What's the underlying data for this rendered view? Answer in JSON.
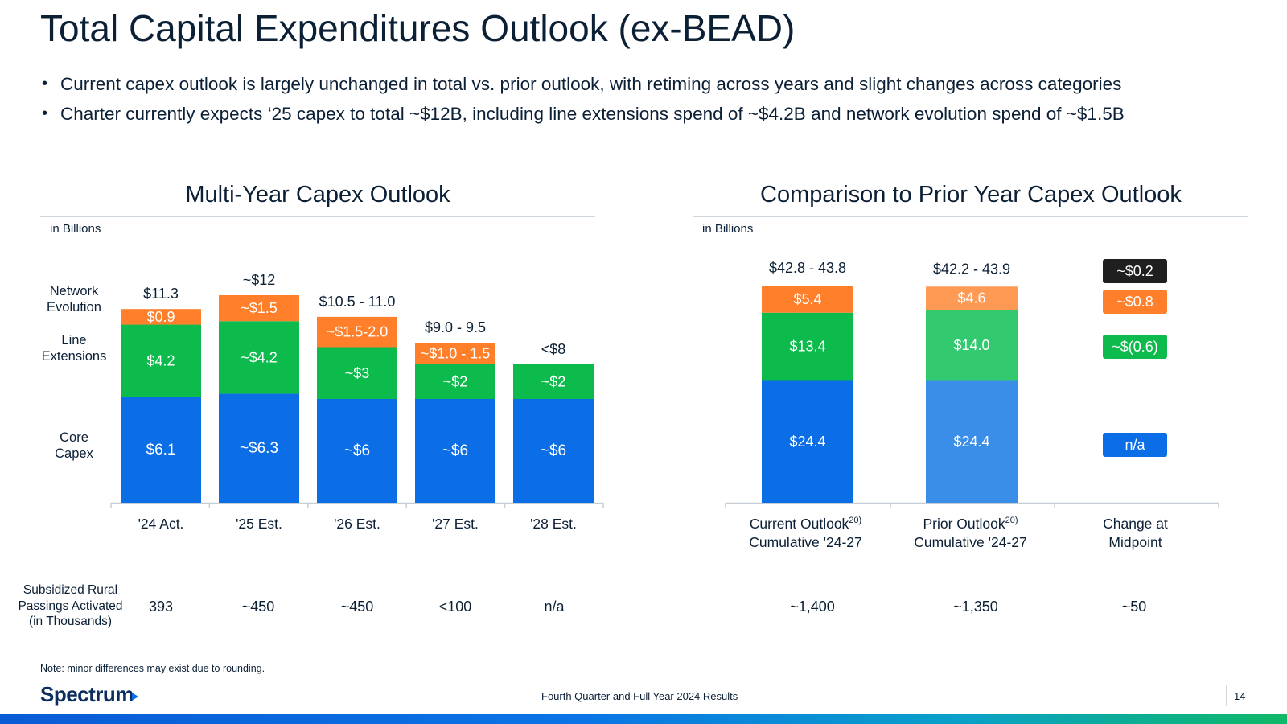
{
  "page": {
    "title": "Total Capital Expenditures Outlook (ex-BEAD)",
    "bullets": [
      "Current capex outlook is largely unchanged in total vs. prior outlook, with retiming across years and slight changes across categories",
      "Charter currently expects ‘25 capex to total ~$12B, including line extensions spend of ~$4.2B and network evolution spend of ~$1.5B"
    ],
    "note": "Note: minor differences may exist due to rounding.",
    "logo_text": "Spectrum",
    "footer_text": "Fourth Quarter and Full Year 2024 Results",
    "page_number": "14"
  },
  "colors": {
    "core": "#0b6ee6",
    "line_ext": "#0dbb4c",
    "network": "#ff7f2a",
    "prior_core": "#3a8ee8",
    "prior_line_ext": "#33c96f",
    "prior_network": "#ff9a55",
    "dark_badge": "#1f1f1f",
    "text": "#0b1f35",
    "axis": "#c8ced6"
  },
  "left_chart": {
    "title": "Multi-Year Capex Outlook",
    "unit": "in Billions",
    "series_labels": [
      {
        "key": "network",
        "text": [
          "Network",
          "Evolution"
        ]
      },
      {
        "key": "line_ext",
        "text": [
          "Line",
          "Extensions"
        ]
      },
      {
        "key": "core",
        "text": [
          "Core",
          "Capex"
        ]
      }
    ],
    "categories": [
      "'24 Act.",
      "'25 Est.",
      "'26 Est.",
      "'27 Est.",
      "'28 Est."
    ],
    "row": {
      "header": [
        "Subsidized Rural",
        "Passings Activated",
        "(in Thousands)"
      ],
      "values": [
        "393",
        "~450",
        "~450",
        "<100",
        "n/a"
      ]
    }
  },
  "right_chart": {
    "title": "Comparison to Prior Year Capex Outlook",
    "unit": "in Billions",
    "categories": [
      {
        "lines": [
          "Current Outlook",
          "Cumulative '24-27"
        ],
        "sup": "20)"
      },
      {
        "lines": [
          "Prior Outlook",
          "Cumulative '24-27"
        ],
        "sup": "20)"
      },
      {
        "lines": [
          "Change at",
          "Midpoint"
        ],
        "sup": ""
      }
    ],
    "change_badges": [
      {
        "label": "~$0.2",
        "color_key": "dark_badge"
      },
      {
        "label": "~$0.8",
        "color_key": "network"
      },
      {
        "label": "~$(0.6)",
        "color_key": "line_ext"
      },
      {
        "label": "n/a",
        "color_key": "core"
      }
    ],
    "row_values": [
      "~1,400",
      "~1,350",
      "~50"
    ]
  },
  "chart_data": [
    {
      "type": "bar",
      "stacked": true,
      "title": "Multi-Year Capex Outlook",
      "unit": "in Billions",
      "categories": [
        "'24 Act.",
        "'25 Est.",
        "'26 Est.",
        "'27 Est.",
        "'28 Est."
      ],
      "series": [
        {
          "key": "core",
          "name": "Core Capex",
          "values": [
            6.1,
            6.3,
            6.0,
            6.0,
            6.0
          ],
          "labels": [
            "$6.1",
            "~$6.3",
            "~$6",
            "~$6",
            "~$6"
          ]
        },
        {
          "key": "line_ext",
          "name": "Line Extensions",
          "values": [
            4.2,
            4.2,
            3.0,
            2.0,
            2.0
          ],
          "labels": [
            "$4.2",
            "~$4.2",
            "~$3",
            "~$2",
            "~$2"
          ]
        },
        {
          "key": "network",
          "name": "Network Evolution",
          "values": [
            0.9,
            1.5,
            1.75,
            1.25,
            0
          ],
          "labels": [
            "$0.9",
            "~$1.5",
            "~$1.5-2.0",
            "~$1.0 - 1.5",
            ""
          ]
        }
      ],
      "totals": [
        "$11.3",
        "~$12",
        "$10.5 - 11.0",
        "$9.0 - 9.5",
        "<$8"
      ],
      "ylim": [
        0,
        13
      ]
    },
    {
      "type": "bar",
      "stacked": true,
      "title": "Comparison to Prior Year Capex Outlook",
      "unit": "in Billions",
      "categories": [
        "Current Outlook Cumulative '24-27",
        "Prior Outlook Cumulative '24-27"
      ],
      "series": [
        {
          "key": "core",
          "values": [
            24.4,
            24.4
          ],
          "labels": [
            "$24.4",
            "$24.4"
          ]
        },
        {
          "key": "line_ext",
          "values": [
            13.4,
            14.0
          ],
          "labels": [
            "$13.4",
            "$14.0"
          ]
        },
        {
          "key": "network",
          "values": [
            5.4,
            4.6
          ],
          "labels": [
            "$5.4",
            "$4.6"
          ]
        }
      ],
      "totals": [
        "$42.8 - 43.8",
        "$42.2 - 43.9"
      ],
      "ylim": [
        0,
        50
      ]
    }
  ]
}
